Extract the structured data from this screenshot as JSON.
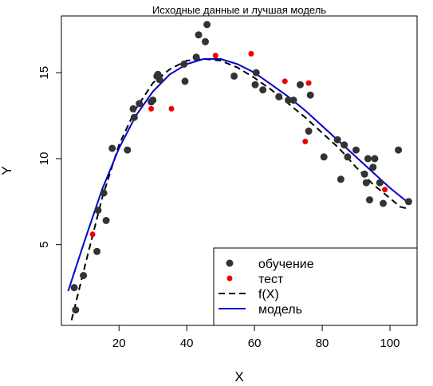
{
  "chart_data": {
    "type": "scatter",
    "title": "Исходные данные и лучшая модель",
    "xlabel": "X",
    "ylabel": "Y",
    "xlim": [
      3,
      108
    ],
    "ylim": [
      0.3,
      18.3
    ],
    "xticks": [
      20,
      40,
      60,
      80,
      100
    ],
    "yticks": [
      5,
      10,
      15
    ],
    "grid": false,
    "legend_position": "bottom-right",
    "series": [
      {
        "name": "обучение",
        "kind": "points",
        "color": "#333333",
        "points": [
          [
            6.8,
            2.5
          ],
          [
            7.2,
            1.2
          ],
          [
            9.5,
            3.2
          ],
          [
            13.5,
            4.6
          ],
          [
            13.8,
            7.0
          ],
          [
            15.5,
            8.0
          ],
          [
            16.2,
            6.4
          ],
          [
            18.0,
            10.6
          ],
          [
            22.5,
            10.5
          ],
          [
            24.5,
            12.4
          ],
          [
            24.2,
            12.9
          ],
          [
            26.0,
            13.2
          ],
          [
            29.5,
            13.3
          ],
          [
            30.0,
            13.4
          ],
          [
            31.2,
            14.8
          ],
          [
            31.5,
            14.9
          ],
          [
            32.0,
            14.6
          ],
          [
            39.5,
            14.5
          ],
          [
            39.2,
            15.5
          ],
          [
            42.8,
            15.9
          ],
          [
            43.5,
            17.2
          ],
          [
            45.5,
            16.8
          ],
          [
            46.0,
            17.8
          ],
          [
            54.0,
            14.8
          ],
          [
            60.2,
            14.3
          ],
          [
            60.5,
            15.0
          ],
          [
            62.5,
            14.0
          ],
          [
            67.2,
            13.6
          ],
          [
            70.0,
            13.4
          ],
          [
            71.5,
            13.4
          ],
          [
            73.5,
            14.3
          ],
          [
            76.0,
            11.6
          ],
          [
            76.5,
            13.7
          ],
          [
            80.5,
            10.1
          ],
          [
            84.5,
            11.1
          ],
          [
            85.5,
            8.8
          ],
          [
            86.5,
            10.8
          ],
          [
            87.5,
            10.1
          ],
          [
            90.0,
            10.5
          ],
          [
            92.5,
            9.1
          ],
          [
            93.0,
            8.6
          ],
          [
            93.5,
            10.0
          ],
          [
            94.0,
            7.6
          ],
          [
            95.0,
            9.5
          ],
          [
            95.5,
            10.0
          ],
          [
            97.0,
            8.6
          ],
          [
            98.0,
            7.4
          ],
          [
            102.5,
            10.5
          ],
          [
            105.5,
            7.5
          ]
        ]
      },
      {
        "name": "тест",
        "kind": "points",
        "color": "#ee0000",
        "points": [
          [
            12.2,
            5.6
          ],
          [
            29.5,
            12.9
          ],
          [
            35.5,
            12.9
          ],
          [
            48.5,
            16.0
          ],
          [
            59.0,
            16.1
          ],
          [
            69.0,
            14.5
          ],
          [
            75.0,
            11.0
          ],
          [
            76.0,
            14.4
          ],
          [
            98.5,
            8.2
          ]
        ]
      },
      {
        "name": "f(X)",
        "kind": "line",
        "dash": "8,5",
        "color": "#000000",
        "points": [
          [
            6,
            0.6
          ],
          [
            10,
            3.8
          ],
          [
            15,
            7.7
          ],
          [
            20,
            10.8
          ],
          [
            25,
            12.9
          ],
          [
            30,
            14.4
          ],
          [
            35,
            15.2
          ],
          [
            40,
            15.7
          ],
          [
            45,
            15.8
          ],
          [
            50,
            15.7
          ],
          [
            55,
            15.3
          ],
          [
            60,
            14.7
          ],
          [
            65,
            14.0
          ],
          [
            70,
            13.2
          ],
          [
            75,
            12.4
          ],
          [
            80,
            11.5
          ],
          [
            85,
            10.6
          ],
          [
            90,
            9.5
          ],
          [
            95,
            8.5
          ],
          [
            100,
            7.7
          ],
          [
            103,
            7.2
          ],
          [
            105,
            7.1
          ]
        ]
      },
      {
        "name": "модель",
        "kind": "line",
        "dash": "",
        "color": "#0000cc",
        "points": [
          [
            5,
            2.3
          ],
          [
            10,
            5.3
          ],
          [
            15,
            8.2
          ],
          [
            20,
            10.6
          ],
          [
            25,
            12.5
          ],
          [
            30,
            13.9
          ],
          [
            35,
            14.9
          ],
          [
            40,
            15.5
          ],
          [
            45,
            15.8
          ],
          [
            50,
            15.8
          ],
          [
            55,
            15.5
          ],
          [
            60,
            15.0
          ],
          [
            65,
            14.3
          ],
          [
            70,
            13.6
          ],
          [
            75,
            12.8
          ],
          [
            80,
            11.9
          ],
          [
            85,
            11.0
          ],
          [
            90,
            10.1
          ],
          [
            95,
            9.2
          ],
          [
            100,
            8.3
          ],
          [
            105,
            7.5
          ]
        ]
      }
    ]
  }
}
